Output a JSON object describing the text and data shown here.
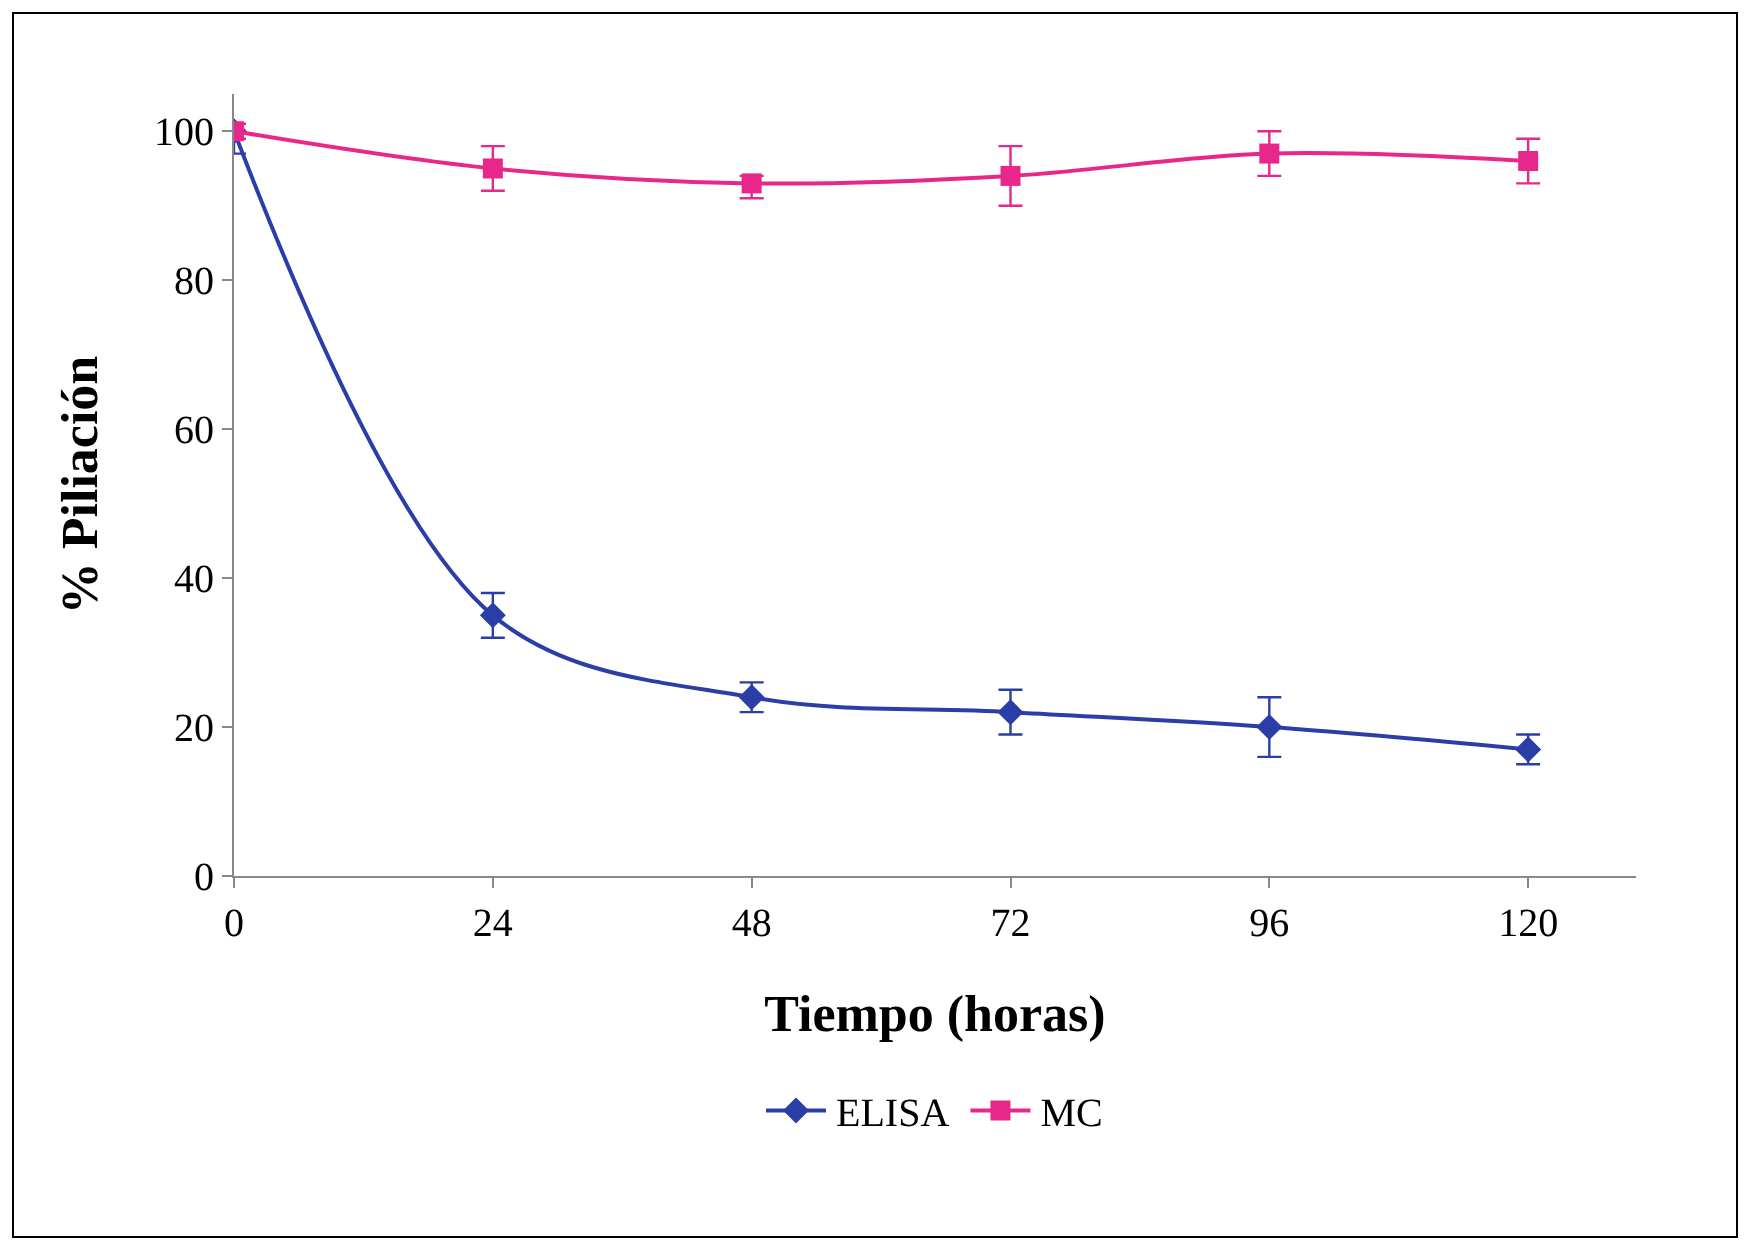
{
  "chart_data": {
    "type": "line",
    "xlabel": "Tiempo (horas)",
    "ylabel": "% Piliación",
    "x": [
      0,
      24,
      48,
      72,
      96,
      120
    ],
    "xlim": [
      0,
      130
    ],
    "xticks": [
      0,
      24,
      48,
      72,
      96,
      120
    ],
    "ylim": [
      0,
      105
    ],
    "yticks": [
      0,
      20,
      40,
      60,
      80,
      100
    ],
    "grid": false,
    "legend": "bottom",
    "line_style": "solid",
    "series": [
      {
        "name": "ELISA",
        "color": "#2b3ea8",
        "marker": "diamond",
        "values": [
          100,
          35,
          24,
          22,
          20,
          17
        ],
        "errors": [
          [
            97,
            100
          ],
          [
            32,
            38
          ],
          [
            22,
            26
          ],
          [
            19,
            25
          ],
          [
            16,
            24
          ],
          [
            15,
            19
          ]
        ]
      },
      {
        "name": "MC",
        "color": "#e8278a",
        "marker": "square",
        "values": [
          100,
          95,
          93,
          94,
          97,
          96
        ],
        "errors": [
          [
            99,
            101
          ],
          [
            92,
            98
          ],
          [
            91,
            94
          ],
          [
            90,
            98
          ],
          [
            94,
            100
          ],
          [
            93,
            99
          ]
        ]
      }
    ]
  }
}
